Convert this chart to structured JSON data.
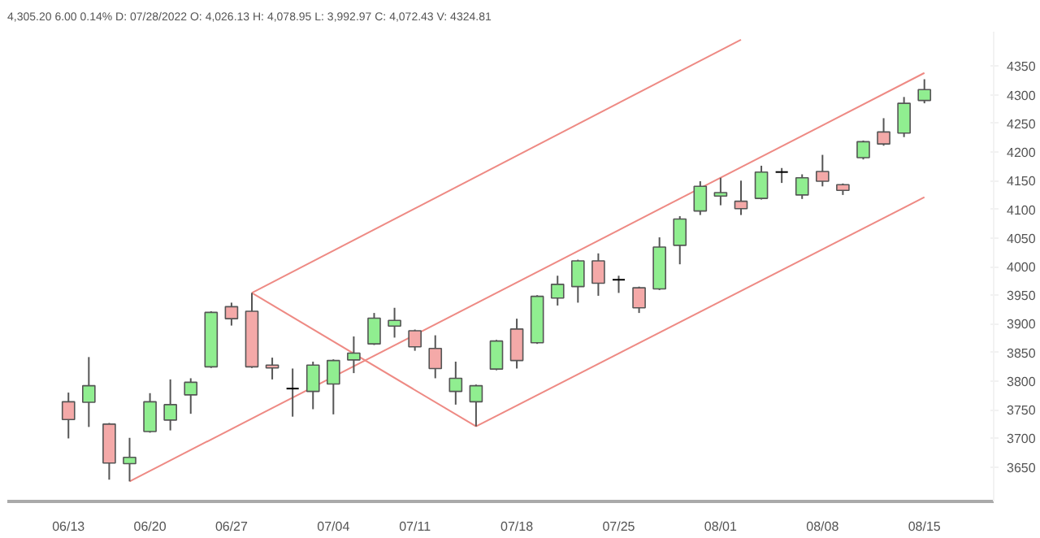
{
  "chart_data": {
    "type": "candlestick",
    "title": "4,305.20 6.00 0.14% D: 07/28/2022 O: 4,026.13 H: 4,078.95 L: 3,992.97 C: 4,072.43 V: 4324.81",
    "categories": [
      "06/13",
      null,
      null,
      null,
      "06/20",
      null,
      null,
      null,
      "06/27",
      null,
      null,
      null,
      null,
      "07/04",
      null,
      null,
      null,
      "07/11",
      null,
      null,
      null,
      null,
      "07/18",
      null,
      null,
      null,
      null,
      "07/25",
      null,
      null,
      null,
      null,
      "08/01",
      null,
      null,
      null,
      null,
      "08/08",
      null,
      null,
      null,
      null,
      "08/15"
    ],
    "ohlc": [
      [
        3764,
        3780,
        3700,
        3733
      ],
      [
        3763,
        3842,
        3720,
        3792
      ],
      [
        3725,
        3727,
        3628,
        3657
      ],
      [
        3656,
        3701,
        3625,
        3667
      ],
      [
        3712,
        3779,
        3710,
        3764
      ],
      [
        3732,
        3803,
        3714,
        3759
      ],
      [
        3776,
        3805,
        3743,
        3798
      ],
      [
        3825,
        3922,
        3823,
        3920
      ],
      [
        3930,
        3937,
        3897,
        3909
      ],
      [
        3922,
        3954,
        3823,
        3825
      ],
      [
        3828,
        3841,
        3803,
        3823
      ],
      [
        3787,
        3822,
        3738,
        3787
      ],
      [
        3782,
        3834,
        3751,
        3828
      ],
      [
        3795,
        3838,
        3742,
        3836
      ],
      [
        3837,
        3878,
        3814,
        3849
      ],
      [
        3865,
        3919,
        3863,
        3910
      ],
      [
        3896,
        3928,
        3876,
        3906
      ],
      [
        3888,
        3890,
        3853,
        3860
      ],
      [
        3857,
        3880,
        3805,
        3822
      ],
      [
        3782,
        3834,
        3759,
        3805
      ],
      [
        3764,
        3794,
        3721,
        3792
      ],
      [
        3821,
        3872,
        3819,
        3870
      ],
      [
        3891,
        3909,
        3822,
        3836
      ],
      [
        3867,
        3950,
        3865,
        3948
      ],
      [
        3945,
        3984,
        3932,
        3969
      ],
      [
        3965,
        4012,
        3937,
        4010
      ],
      [
        4010,
        4023,
        3949,
        3971
      ],
      [
        3977,
        3984,
        3954,
        3977
      ],
      [
        3963,
        3965,
        3919,
        3928
      ],
      [
        3961,
        4051,
        3959,
        4034
      ],
      [
        4037,
        4088,
        4004,
        4083
      ],
      [
        4097,
        4149,
        4090,
        4140
      ],
      [
        4123,
        4155,
        4107,
        4129
      ],
      [
        4114,
        4150,
        4090,
        4101
      ],
      [
        4119,
        4176,
        4117,
        4165
      ],
      [
        4165,
        4172,
        4146,
        4165
      ],
      [
        4125,
        4161,
        4118,
        4155
      ],
      [
        4166,
        4195,
        4140,
        4149
      ],
      [
        4143,
        4145,
        4125,
        4133
      ],
      [
        4190,
        4220,
        4187,
        4218
      ],
      [
        4235,
        4259,
        4211,
        4214
      ],
      [
        4233,
        4296,
        4226,
        4285
      ],
      [
        4290,
        4327,
        4285,
        4309
      ]
    ],
    "colors": [
      "#f4a9a8",
      "#90ee90",
      "#f4a9a8",
      "#90ee90",
      "#90ee90",
      "#90ee90",
      "#90ee90",
      "#90ee90",
      "#f4a9a8",
      "#f4a9a8",
      "#f4a9a8",
      "#000000",
      "#90ee90",
      "#90ee90",
      "#90ee90",
      "#90ee90",
      "#90ee90",
      "#f4a9a8",
      "#f4a9a8",
      "#90ee90",
      "#90ee90",
      "#90ee90",
      "#f4a9a8",
      "#90ee90",
      "#90ee90",
      "#90ee90",
      "#f4a9a8",
      "#000000",
      "#f4a9a8",
      "#90ee90",
      "#90ee90",
      "#90ee90",
      "#90ee90",
      "#f4a9a8",
      "#90ee90",
      "#000000",
      "#90ee90",
      "#f4a9a8",
      "#f4a9a8",
      "#90ee90",
      "#f4a9a8",
      "#90ee90",
      "#90ee90"
    ],
    "series": [
      {
        "type": "line",
        "color": "#ee8a84",
        "values": [
          null,
          null,
          null,
          3625,
          null,
          null,
          null,
          null,
          null,
          null,
          null,
          null,
          null,
          null,
          null,
          null,
          null,
          null,
          null,
          null,
          null,
          null,
          null,
          null,
          null,
          null,
          null,
          null,
          null,
          null,
          null,
          null,
          null,
          null,
          null,
          null,
          null,
          null,
          null,
          null,
          null,
          null,
          4338
        ]
      },
      {
        "type": "line",
        "color": "#ee8a84",
        "values": [
          null,
          null,
          null,
          null,
          null,
          null,
          null,
          null,
          null,
          3954,
          null,
          null,
          null,
          null,
          null,
          null,
          null,
          null,
          null,
          null,
          null,
          null,
          null,
          null,
          null,
          null,
          null,
          null,
          null,
          null,
          null,
          null,
          null,
          4396,
          null,
          null,
          null,
          null,
          null,
          null,
          null,
          null,
          null
        ]
      },
      {
        "type": "line",
        "color": "#ee8a84",
        "values": [
          null,
          null,
          null,
          null,
          null,
          null,
          null,
          null,
          null,
          3954,
          null,
          null,
          null,
          null,
          null,
          null,
          null,
          null,
          null,
          null,
          3721,
          null,
          null,
          null,
          null,
          null,
          null,
          null,
          null,
          null,
          null,
          null,
          null,
          null,
          null,
          null,
          null,
          null,
          null,
          null,
          null,
          null,
          null
        ]
      },
      {
        "type": "line",
        "color": "#ee8a84",
        "values": [
          null,
          null,
          null,
          null,
          null,
          null,
          null,
          null,
          null,
          null,
          null,
          null,
          null,
          null,
          null,
          null,
          null,
          null,
          null,
          null,
          3721,
          null,
          null,
          null,
          null,
          null,
          null,
          null,
          null,
          null,
          null,
          null,
          null,
          null,
          null,
          null,
          null,
          null,
          null,
          null,
          null,
          null,
          4121
        ]
      }
    ],
    "ylim": [
      3590,
      4410
    ],
    "yticks": [
      3650,
      3700,
      3750,
      3800,
      3850,
      3900,
      3950,
      4000,
      4050,
      4100,
      4150,
      4200,
      4250,
      4300,
      4350
    ],
    "grid": false
  }
}
